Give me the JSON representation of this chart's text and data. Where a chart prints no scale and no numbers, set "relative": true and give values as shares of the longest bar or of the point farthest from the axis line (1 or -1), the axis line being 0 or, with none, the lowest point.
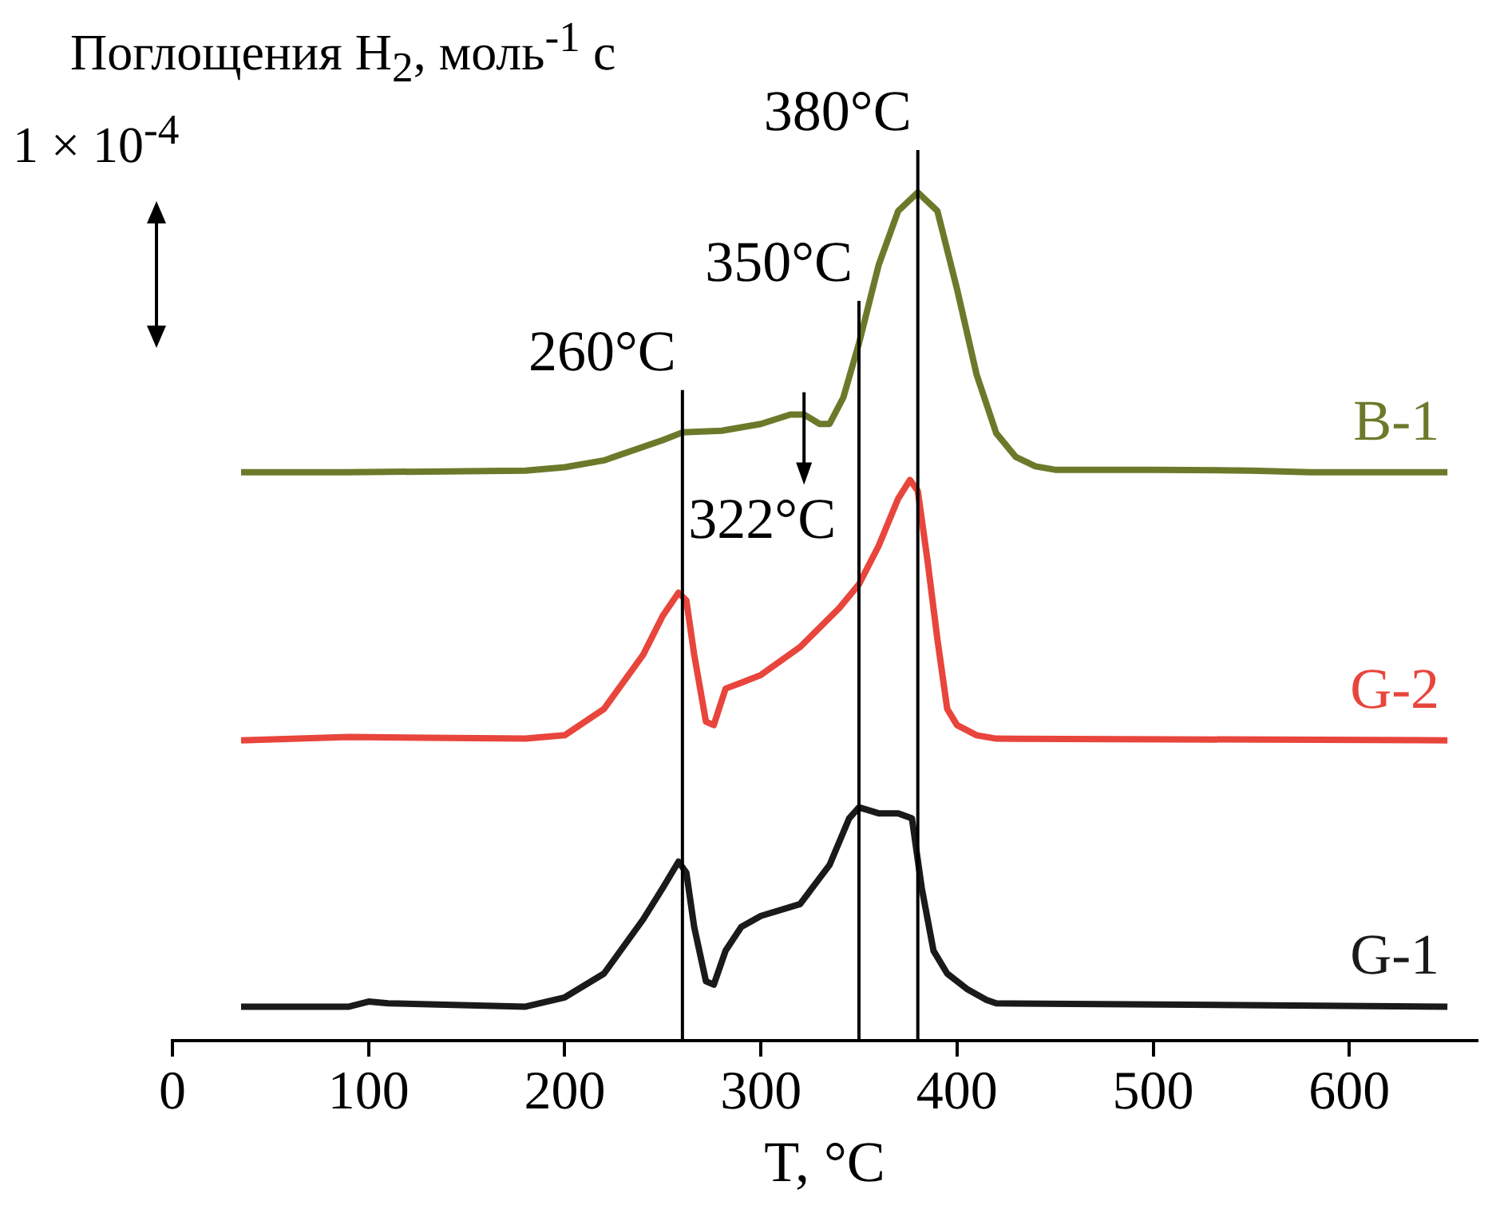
{
  "chart_data": {
    "type": "line",
    "relative": true,
    "ylabel": "Поглощения H$_{2}$, моль$^{-1}$ с",
    "xlabel": "T, °C",
    "xlim": [
      0,
      665
    ],
    "xticks": [
      0,
      100,
      200,
      300,
      400,
      500,
      600
    ],
    "grid": false,
    "legend": false,
    "marker": "none",
    "line_style": "solid",
    "series": [
      {
        "name": "B-1",
        "color": "#6b7a2a",
        "x": [
          35,
          90,
          180,
          200,
          220,
          250,
          260,
          280,
          300,
          315,
          322,
          330,
          335,
          342,
          350,
          360,
          370,
          380,
          390,
          400,
          410,
          420,
          430,
          440,
          450,
          500,
          550,
          580,
          650
        ],
        "values": [
          0.67,
          0.67,
          0.672,
          0.676,
          0.684,
          0.708,
          0.717,
          0.719,
          0.727,
          0.738,
          0.738,
          0.727,
          0.727,
          0.758,
          0.822,
          0.914,
          0.978,
          1,
          0.978,
          0.886,
          0.785,
          0.716,
          0.688,
          0.677,
          0.673,
          0.673,
          0.672,
          0.67,
          0.67
        ]
      },
      {
        "name": "G-2",
        "color": "#e8453c",
        "x": [
          35,
          90,
          180,
          200,
          220,
          240,
          250,
          258,
          262,
          266,
          272,
          276,
          282,
          290,
          300,
          320,
          340,
          350,
          360,
          370,
          376,
          380,
          385,
          390,
          395,
          400,
          410,
          420,
          650
        ],
        "values": [
          0.354,
          0.358,
          0.356,
          0.36,
          0.391,
          0.455,
          0.501,
          0.528,
          0.519,
          0.455,
          0.376,
          0.372,
          0.415,
          0.422,
          0.431,
          0.464,
          0.51,
          0.538,
          0.583,
          0.639,
          0.661,
          0.648,
          0.565,
          0.473,
          0.391,
          0.372,
          0.36,
          0.356,
          0.354
        ]
      },
      {
        "name": "G-1",
        "color": "#1a1a1a",
        "x": [
          35,
          90,
          100,
          110,
          180,
          200,
          220,
          240,
          250,
          258,
          262,
          266,
          272,
          276,
          282,
          290,
          300,
          320,
          335,
          345,
          350,
          360,
          370,
          377,
          382,
          388,
          395,
          405,
          415,
          420,
          650
        ],
        "values": [
          0.04,
          0.04,
          0.046,
          0.044,
          0.04,
          0.051,
          0.079,
          0.143,
          0.18,
          0.211,
          0.198,
          0.134,
          0.07,
          0.066,
          0.106,
          0.134,
          0.147,
          0.161,
          0.207,
          0.262,
          0.275,
          0.268,
          0.268,
          0.262,
          0.18,
          0.106,
          0.079,
          0.061,
          0.048,
          0.044,
          0.04
        ]
      }
    ],
    "ref_lines": [
      {
        "axis": "x",
        "value": 260,
        "label": "260°C"
      },
      {
        "axis": "x",
        "value": 350,
        "label": "350°C"
      },
      {
        "axis": "x",
        "value": 380,
        "label": "380°C"
      }
    ],
    "annotations": [
      "1 × 10$^{-4}$",
      {
        "text": "322°C",
        "x": 322,
        "y": 0.738
      }
    ]
  }
}
